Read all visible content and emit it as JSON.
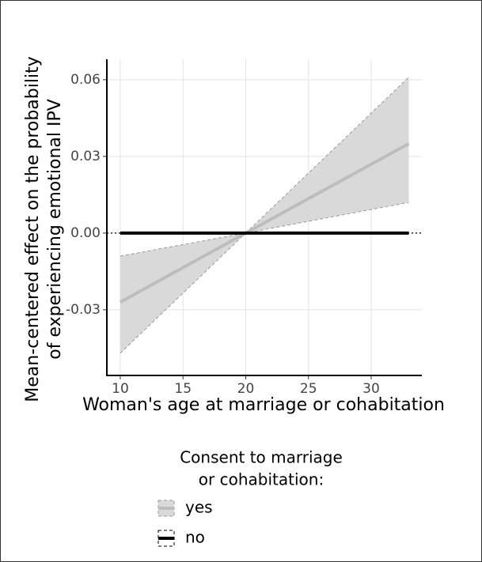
{
  "chart_data": {
    "type": "line",
    "ylabel": [
      "Mean-centered effect on the probability",
      "of experiencing emotional IPV"
    ],
    "xlabel": "Woman's age at marriage or cohabitation",
    "legend_title": [
      "Consent to marriage",
      "or cohabitation:"
    ],
    "x": [
      10,
      20,
      33
    ],
    "series": [
      {
        "name": "yes",
        "color": "#bdbdbd",
        "fill": "#d9d9d9",
        "values": [
          -0.027,
          0,
          0.035
        ],
        "lower": [
          -0.047,
          0,
          0.012
        ],
        "upper": [
          -0.009,
          0,
          0.061
        ]
      },
      {
        "name": "no",
        "color": "#000000",
        "values": [
          0,
          0,
          0
        ]
      }
    ],
    "hline": 0,
    "xlim": [
      8.93,
      34.04
    ],
    "xticks": [
      10,
      15,
      20,
      25,
      30
    ],
    "ylim": [
      -0.0557,
      0.068
    ],
    "yticks": [
      -0.03,
      {
        "value": 0,
        "label": "0.00"
      },
      0.03,
      0.06
    ],
    "grid": true
  }
}
